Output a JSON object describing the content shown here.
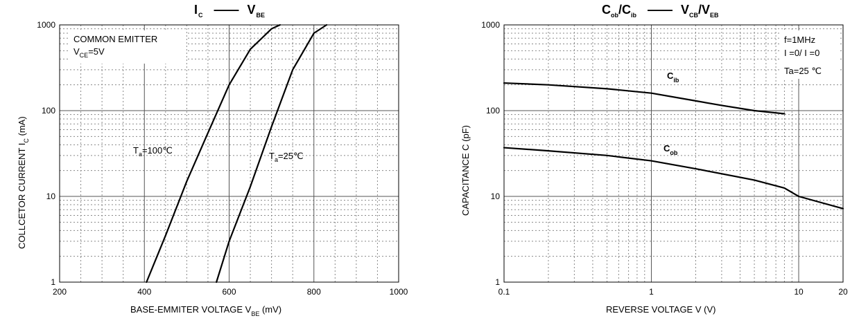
{
  "chart_data": [
    {
      "type": "line",
      "title": {
        "main": "I",
        "main_sub": "C",
        "sep": "——",
        "right": "V",
        "right_sub": "BE"
      },
      "xlabel": {
        "text": "BASE-EMMITER VOLTAGE   V",
        "sub": "BE",
        "unit": "  (mV)"
      },
      "ylabel": {
        "text": "COLLCETOR CURRENT   I",
        "sub": "C",
        "unit": "  (mA)"
      },
      "xlim": [
        200,
        1000
      ],
      "ylim": [
        1,
        1000
      ],
      "yscale": "log",
      "xticks": [
        "200",
        "400",
        "600",
        "800",
        "1000"
      ],
      "yticks": [
        "1",
        "10",
        "100",
        "1000"
      ],
      "grid": true,
      "annotation": {
        "line1": "COMMON EMITTER",
        "line2_pre": "V",
        "line2_sub": "CE",
        "line2_post": "=5V"
      },
      "series": [
        {
          "name": "Ta=100℃",
          "label_pre": "T",
          "label_sub": "a",
          "label_post": "=100℃",
          "x": [
            405,
            450,
            500,
            550,
            600,
            650,
            700,
            720
          ],
          "y": [
            1,
            3.5,
            15,
            55,
            200,
            520,
            900,
            1000
          ]
        },
        {
          "name": "Ta=25℃",
          "label_pre": "T",
          "label_sub": "a",
          "label_post": "=25℃",
          "x": [
            570,
            600,
            650,
            700,
            750,
            800,
            830
          ],
          "y": [
            1,
            3,
            13,
            65,
            300,
            800,
            1000
          ]
        }
      ]
    },
    {
      "type": "line",
      "title": {
        "main": "C",
        "main_sub": "ob",
        "mid": "/C",
        "mid_sub": "ib",
        "sep": "——",
        "right": "V",
        "right_sub": "CB",
        "right_mid": "/V",
        "right_sub2": "EB"
      },
      "xlabel": {
        "text": "REVERSE VOLTAGE   V   (V)"
      },
      "ylabel": {
        "text": "CAPACITANCE C (pF)"
      },
      "xlim": [
        0.1,
        20
      ],
      "ylim": [
        1,
        1000
      ],
      "xscale": "log",
      "yscale": "log",
      "xticks": [
        "0.1",
        "1",
        "10",
        "20"
      ],
      "yticks": [
        "1",
        "10",
        "100",
        "1000"
      ],
      "grid": true,
      "annotation": {
        "line1": "f=1MHz",
        "line2": "I =0/ I =0",
        "line2_sub1": "E",
        "line2_sub2": "C",
        "line3": "Ta=25 ℃"
      },
      "series": [
        {
          "name": "Cib",
          "label_pre": "C",
          "label_sub": "ib",
          "x": [
            0.1,
            0.2,
            0.5,
            1,
            2,
            3,
            5,
            8
          ],
          "y": [
            210,
            200,
            180,
            160,
            130,
            115,
            100,
            92
          ]
        },
        {
          "name": "Cob",
          "label_pre": "C",
          "label_sub": "ob",
          "x": [
            0.1,
            0.2,
            0.5,
            1,
            2,
            5,
            8,
            10,
            20
          ],
          "y": [
            37,
            34,
            30,
            26,
            21,
            15.5,
            12.5,
            10,
            7.2
          ]
        }
      ]
    }
  ]
}
